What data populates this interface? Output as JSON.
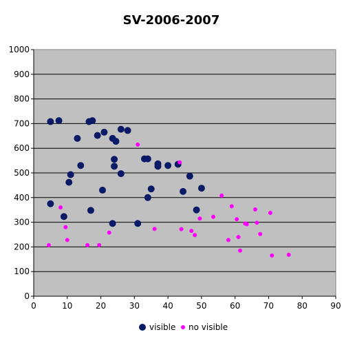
{
  "chart_data": {
    "type": "scatter",
    "title": "SV-2006-2007",
    "xlim": [
      0,
      90
    ],
    "ylim": [
      0,
      1000
    ],
    "x_ticks": [
      "0",
      "10",
      "20",
      "30",
      "40",
      "50",
      "60",
      "70",
      "80",
      "90"
    ],
    "y_ticks": [
      "0",
      "100",
      "200",
      "300",
      "400",
      "500",
      "600",
      "700",
      "800",
      "900",
      "1000"
    ],
    "grid": "horizontal",
    "plot_background": "#C0C0C0",
    "legend_position": "bottom",
    "series": [
      {
        "name": "visible",
        "color": "#0A1A66",
        "marker": "large-dot",
        "points": [
          [
            5,
            708
          ],
          [
            5,
            375
          ],
          [
            7.5,
            712
          ],
          [
            9,
            323
          ],
          [
            10.5,
            462
          ],
          [
            11,
            493
          ],
          [
            13,
            640
          ],
          [
            14,
            530
          ],
          [
            16.5,
            708
          ],
          [
            17,
            348
          ],
          [
            17.5,
            712
          ],
          [
            19,
            652
          ],
          [
            20.5,
            430
          ],
          [
            21,
            665
          ],
          [
            23.5,
            295
          ],
          [
            23.5,
            640
          ],
          [
            24,
            555
          ],
          [
            24,
            527
          ],
          [
            24.5,
            628
          ],
          [
            26,
            677
          ],
          [
            26,
            497
          ],
          [
            28,
            672
          ],
          [
            31,
            295
          ],
          [
            33,
            557
          ],
          [
            34,
            557
          ],
          [
            34,
            400
          ],
          [
            35,
            435
          ],
          [
            37,
            537
          ],
          [
            37,
            527
          ],
          [
            40,
            530
          ],
          [
            43,
            535
          ],
          [
            44.5,
            425
          ],
          [
            46.5,
            487
          ],
          [
            48.5,
            350
          ],
          [
            50,
            438
          ]
        ]
      },
      {
        "name": "no visible",
        "color": "#FF00FF",
        "marker": "small-dot",
        "points": [
          [
            4.5,
            207
          ],
          [
            8,
            360
          ],
          [
            9.5,
            280
          ],
          [
            10,
            228
          ],
          [
            16,
            207
          ],
          [
            19.5,
            207
          ],
          [
            22.5,
            258
          ],
          [
            31,
            615
          ],
          [
            36,
            273
          ],
          [
            43.5,
            543
          ],
          [
            44,
            272
          ],
          [
            47,
            265
          ],
          [
            48,
            248
          ],
          [
            49.5,
            315
          ],
          [
            53.5,
            322
          ],
          [
            56,
            408
          ],
          [
            58,
            228
          ],
          [
            59,
            365
          ],
          [
            60.5,
            312
          ],
          [
            61,
            240
          ],
          [
            61.5,
            185
          ],
          [
            63,
            295
          ],
          [
            63.5,
            292
          ],
          [
            66,
            352
          ],
          [
            66.5,
            298
          ],
          [
            67.5,
            252
          ],
          [
            70.5,
            338
          ],
          [
            71,
            165
          ],
          [
            76,
            168
          ]
        ]
      }
    ]
  }
}
